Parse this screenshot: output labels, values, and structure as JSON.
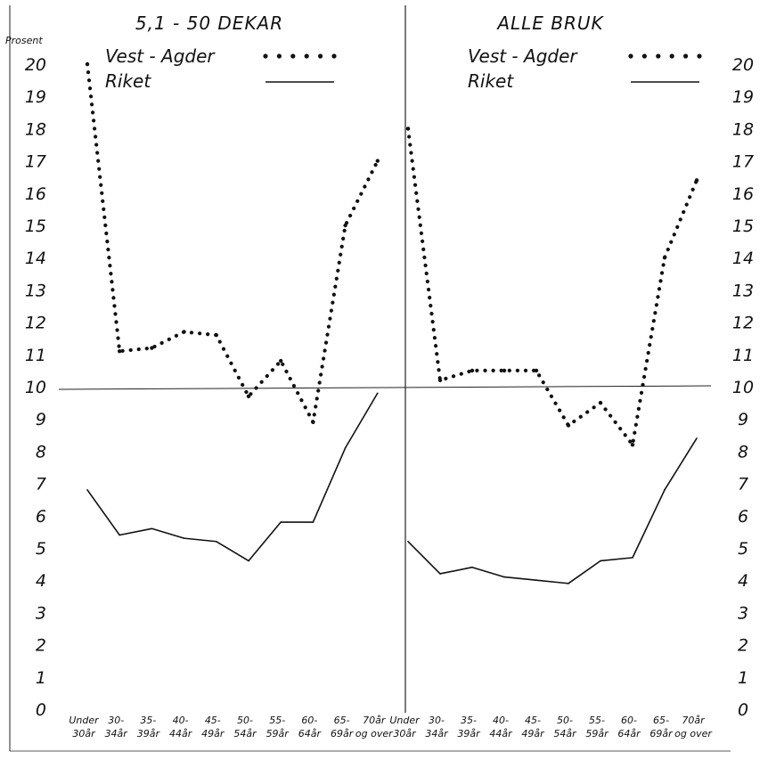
{
  "unit_label": "Prosent",
  "chart_data": [
    {
      "type": "line",
      "title": "5,1 - 50 DEKAR",
      "xlabel": "",
      "ylabel": "Prosent",
      "ylim": [
        0,
        20
      ],
      "categories": [
        "Under 30år",
        "30- 34år",
        "35- 39år",
        "40- 44år",
        "45- 49år",
        "50- 54år",
        "55- 59år",
        "60- 64år",
        "65- 69år",
        "70år og over"
      ],
      "series": [
        {
          "name": "Vest - Agder",
          "style": "dotted",
          "color": "#111111",
          "values": [
            20.0,
            11.1,
            11.2,
            11.7,
            11.6,
            9.7,
            10.8,
            8.9,
            15.0,
            17.0
          ]
        },
        {
          "name": "Riket",
          "style": "solid",
          "color": "#111111",
          "values": [
            6.8,
            5.4,
            5.6,
            5.3,
            5.2,
            4.6,
            5.8,
            5.8,
            8.1,
            9.8
          ]
        }
      ],
      "grid": false,
      "legend": "top-right"
    },
    {
      "type": "line",
      "title": "ALLE BRUK",
      "xlabel": "",
      "ylabel": "",
      "ylim": [
        0,
        20
      ],
      "categories": [
        "Under 30år",
        "30- 34år",
        "35- 39år",
        "40- 44år",
        "45- 49år",
        "50- 54år",
        "55- 59år",
        "60- 64år",
        "65- 69år",
        "70år og over"
      ],
      "series": [
        {
          "name": "Vest - Agder",
          "style": "dotted",
          "color": "#111111",
          "values": [
            18.0,
            10.2,
            10.5,
            10.5,
            10.5,
            8.8,
            9.5,
            8.2,
            14.0,
            16.4
          ]
        },
        {
          "name": "Riket",
          "style": "solid",
          "color": "#111111",
          "values": [
            5.2,
            4.2,
            4.4,
            4.1,
            4.0,
            3.9,
            4.6,
            4.7,
            6.8,
            8.4
          ]
        }
      ],
      "grid": false,
      "legend": "top-right"
    }
  ],
  "y_ticks": [
    "0",
    "1",
    "2",
    "3",
    "4",
    "5",
    "6",
    "7",
    "8",
    "9",
    "10",
    "11",
    "12",
    "13",
    "14",
    "15",
    "16",
    "17",
    "18",
    "19",
    "20"
  ],
  "x_tick_labels": [
    [
      "Under",
      "30år"
    ],
    [
      "30-",
      "34år"
    ],
    [
      "35-",
      "39år"
    ],
    [
      "40-",
      "44år"
    ],
    [
      "45-",
      "49år"
    ],
    [
      "50-",
      "54år"
    ],
    [
      "55-",
      "59år"
    ],
    [
      "60-",
      "64år"
    ],
    [
      "65-",
      "69år"
    ],
    [
      "70år",
      "og over"
    ]
  ],
  "reference_line_value": 10
}
